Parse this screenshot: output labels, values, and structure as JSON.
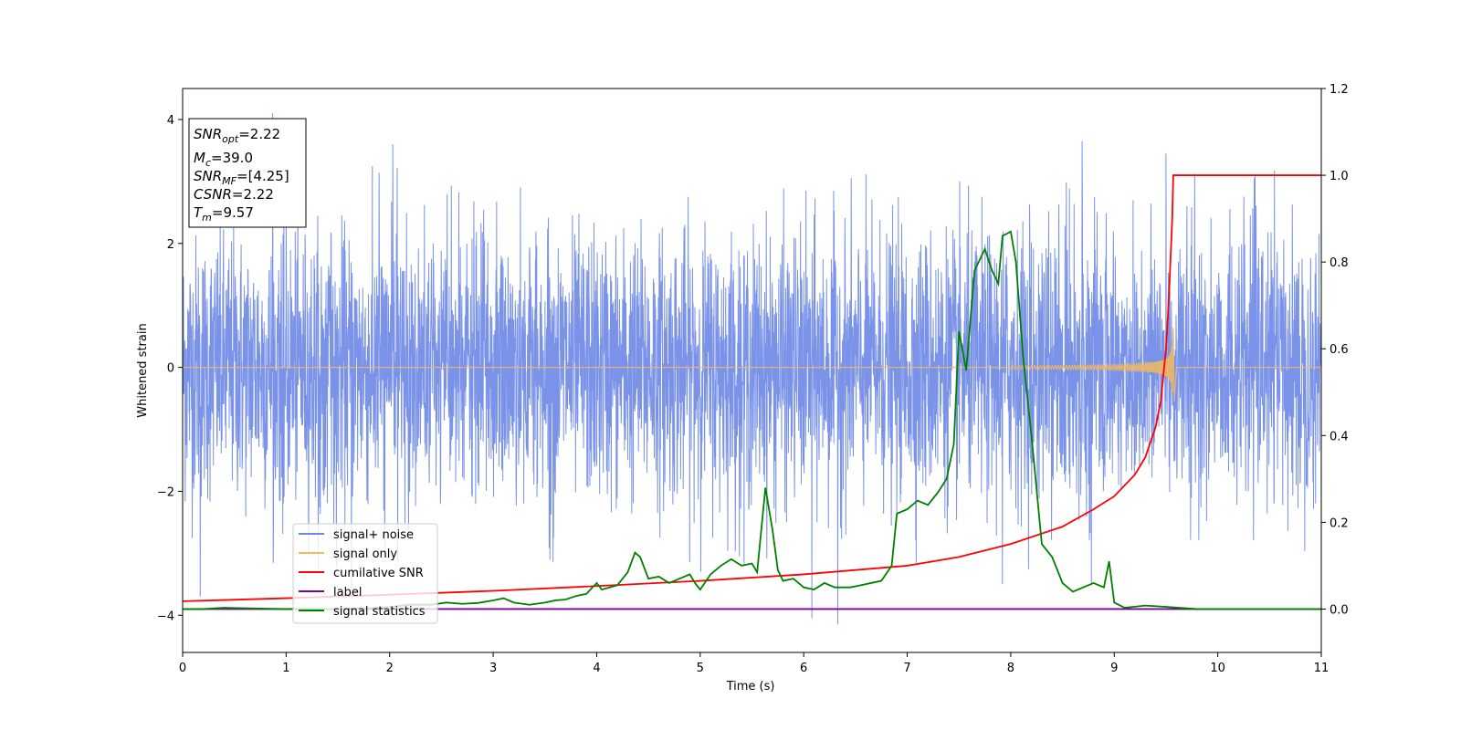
{
  "chart_data": {
    "type": "line",
    "xlabel": "Time (s)",
    "ylabel": "Whitened strain",
    "xlim": [
      0,
      11
    ],
    "ylim_left": [
      -4.6,
      4.5
    ],
    "ylim_right": [
      -0.1,
      1.2
    ],
    "x_ticks": [
      "0",
      "1",
      "2",
      "3",
      "4",
      "5",
      "6",
      "7",
      "8",
      "9",
      "10",
      "11"
    ],
    "y_ticks_left": [
      "−4",
      "−2",
      "0",
      "2",
      "4"
    ],
    "y_ticks_right": [
      "0.0",
      "0.2",
      "0.4",
      "0.6",
      "0.8",
      "1.0",
      "1.2"
    ],
    "grid": false,
    "legend_position": "lower-left",
    "colors": {
      "signal_noise": "#6b87e6",
      "signal_only": "#f5b85c",
      "cumulative_snr": "#ff0000",
      "label": "#7b00a0",
      "signal_statistics": "#008000"
    },
    "legend": [
      {
        "label": "signal+ noise",
        "color": "#6b87e6"
      },
      {
        "label": "signal only",
        "color": "#f5b85c"
      },
      {
        "label": "cumilative SNR",
        "color": "#ff0000"
      },
      {
        "label": "label",
        "color": "#7b00a0"
      },
      {
        "label": "signal statistics",
        "color": "#008000"
      }
    ],
    "info_box": {
      "snr_opt": {
        "main": "SNR",
        "sub": "opt",
        "value": "=2.22"
      },
      "mc": {
        "main": "M",
        "sub": "c",
        "value": "=39.0"
      },
      "snr_mf": {
        "main": "SNR",
        "sub": "MF",
        "value": "=[4.25]"
      },
      "csnr": {
        "main": "CSNR",
        "value": "=2.22"
      },
      "tm": {
        "main": "T",
        "sub": "m",
        "value": "=9.57"
      }
    },
    "series": [
      {
        "name": "signal+ noise",
        "axis": "left",
        "description_stats": {
          "x_range": [
            0,
            11
          ],
          "typical_amplitude": 1.0,
          "min": -4.15,
          "max": 4.1
        },
        "peaks": [
          [
            0.87,
            4.1
          ],
          [
            2.03,
            3.6
          ],
          [
            6.33,
            -4.15
          ],
          [
            6.08,
            -4.05
          ],
          [
            8.69,
            3.65
          ],
          [
            9.5,
            3.45
          ],
          [
            0.17,
            -3.7
          ],
          [
            1.63,
            -3.6
          ],
          [
            7.92,
            -3.5
          ],
          [
            8.78,
            -3.5
          ]
        ]
      },
      {
        "name": "signal only",
        "axis": "left",
        "chirp": {
          "start": 8.0,
          "merger": 9.57,
          "peak_amplitude": 0.7
        }
      },
      {
        "name": "cumilative SNR",
        "axis": "right",
        "x": [
          0,
          1,
          2,
          3,
          4,
          5,
          6,
          7,
          7.5,
          8,
          8.5,
          8.8,
          9.0,
          9.2,
          9.3,
          9.4,
          9.45,
          9.5,
          9.53,
          9.56,
          9.57,
          10,
          11
        ],
        "y": [
          0.018,
          0.025,
          0.033,
          0.042,
          0.053,
          0.065,
          0.08,
          0.1,
          0.12,
          0.15,
          0.19,
          0.23,
          0.26,
          0.31,
          0.35,
          0.42,
          0.48,
          0.6,
          0.73,
          0.9,
          1.0,
          1.0,
          1.0
        ]
      },
      {
        "name": "label",
        "axis": "right",
        "x": [
          0,
          11
        ],
        "y": [
          0,
          0
        ]
      },
      {
        "name": "signal statistics",
        "axis": "right",
        "x": [
          0,
          0.2,
          0.4,
          0.6,
          0.8,
          1.0,
          1.2,
          1.4,
          1.6,
          1.8,
          2.0,
          2.2,
          2.4,
          2.55,
          2.7,
          2.85,
          3.0,
          3.1,
          3.2,
          3.35,
          3.5,
          3.6,
          3.7,
          3.8,
          3.9,
          4.0,
          4.05,
          4.2,
          4.3,
          4.37,
          4.42,
          4.5,
          4.6,
          4.7,
          4.8,
          4.9,
          4.95,
          5.0,
          5.1,
          5.2,
          5.3,
          5.4,
          5.5,
          5.55,
          5.63,
          5.7,
          5.75,
          5.8,
          5.9,
          6.0,
          6.1,
          6.2,
          6.3,
          6.45,
          6.55,
          6.65,
          6.75,
          6.85,
          6.9,
          7.0,
          7.1,
          7.2,
          7.3,
          7.38,
          7.45,
          7.5,
          7.57,
          7.65,
          7.75,
          7.82,
          7.88,
          7.92,
          8.0,
          8.05,
          8.12,
          8.2,
          8.3,
          8.4,
          8.5,
          8.6,
          8.7,
          8.8,
          8.9,
          8.95,
          9.0,
          9.1,
          9.3,
          9.5,
          9.8,
          10.0,
          10.5,
          11.0
        ],
        "y": [
          0.0,
          0.0,
          0.003,
          0.002,
          0.001,
          0.0,
          0.001,
          0.0,
          0.001,
          0.002,
          0.005,
          0.01,
          0.01,
          0.015,
          0.012,
          0.014,
          0.02,
          0.025,
          0.015,
          0.01,
          0.015,
          0.02,
          0.022,
          0.03,
          0.035,
          0.06,
          0.045,
          0.055,
          0.085,
          0.13,
          0.12,
          0.07,
          0.075,
          0.06,
          0.07,
          0.08,
          0.06,
          0.045,
          0.08,
          0.1,
          0.115,
          0.1,
          0.105,
          0.085,
          0.28,
          0.18,
          0.09,
          0.065,
          0.07,
          0.05,
          0.045,
          0.06,
          0.05,
          0.05,
          0.055,
          0.06,
          0.065,
          0.1,
          0.22,
          0.23,
          0.25,
          0.24,
          0.27,
          0.3,
          0.38,
          0.64,
          0.55,
          0.78,
          0.83,
          0.78,
          0.75,
          0.86,
          0.87,
          0.8,
          0.58,
          0.4,
          0.15,
          0.12,
          0.06,
          0.04,
          0.05,
          0.06,
          0.05,
          0.11,
          0.015,
          0.003,
          0.008,
          0.005,
          0.0,
          0.0,
          0.0,
          0.0
        ]
      }
    ]
  }
}
